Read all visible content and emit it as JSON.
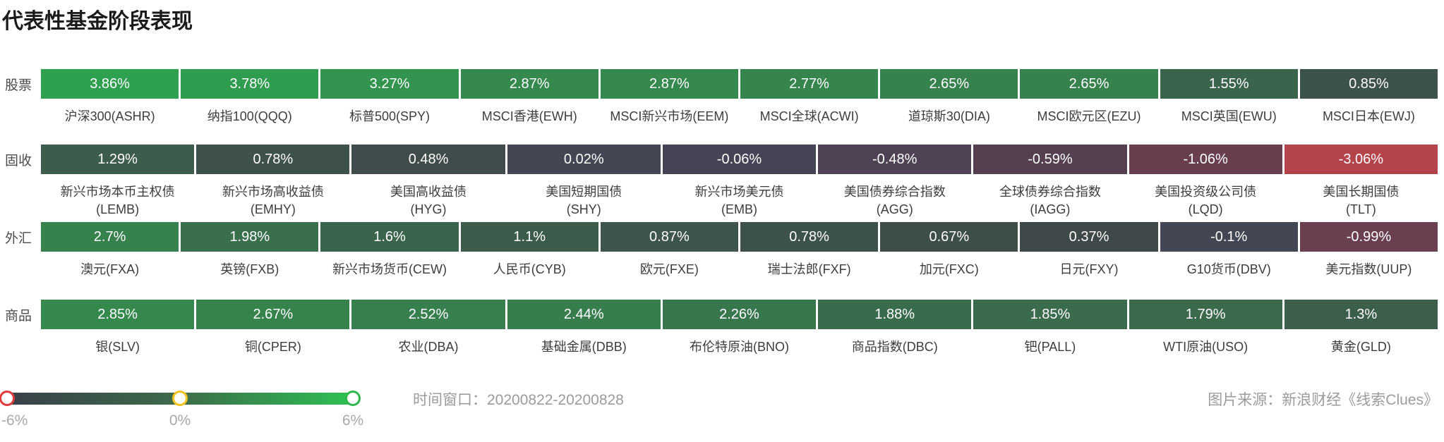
{
  "title": "代表性基金阶段表现",
  "chart_data": {
    "type": "heatmap",
    "title": "代表性基金阶段表现",
    "unit": "%",
    "time_window": "20200822-20200828",
    "color_axis": {
      "min": -6,
      "mid": 0,
      "max": 6,
      "min_label": "-6%",
      "mid_label": "0%",
      "max_label": "6%"
    },
    "rows": [
      {
        "category": "股票",
        "cells": [
          {
            "fund": "沪深300(ASHR)",
            "value": 3.86,
            "display": "3.86%",
            "color": "#2F9F50",
            "label_lines": [
              "沪深300(ASHR)"
            ]
          },
          {
            "fund": "纳指100(QQQ)",
            "value": 3.78,
            "display": "3.78%",
            "color": "#309C50",
            "label_lines": [
              "纳指100(QQQ)"
            ]
          },
          {
            "fund": "标普500(SPY)",
            "value": 3.27,
            "display": "3.27%",
            "color": "#32944F",
            "label_lines": [
              "标普500(SPY)"
            ]
          },
          {
            "fund": "MSCI香港(EWH)",
            "value": 2.87,
            "display": "2.87%",
            "color": "#35884E",
            "label_lines": [
              "MSCI香港(EWH)"
            ]
          },
          {
            "fund": "MSCI新兴市场(EEM)",
            "value": 2.87,
            "display": "2.87%",
            "color": "#35884E",
            "label_lines": [
              "MSCI新兴市场(EEM)"
            ]
          },
          {
            "fund": "MSCI全球(ACWI)",
            "value": 2.77,
            "display": "2.77%",
            "color": "#36854E",
            "label_lines": [
              "MSCI全球(ACWI)"
            ]
          },
          {
            "fund": "道琼斯30(DIA)",
            "value": 2.65,
            "display": "2.65%",
            "color": "#37814E",
            "label_lines": [
              "道琼斯30(DIA)"
            ]
          },
          {
            "fund": "MSCI欧元区(EZU)",
            "value": 2.65,
            "display": "2.65%",
            "color": "#37814E",
            "label_lines": [
              "MSCI欧元区(EZU)"
            ]
          },
          {
            "fund": "MSCI英国(EWU)",
            "value": 1.55,
            "display": "1.55%",
            "color": "#3B644D",
            "label_lines": [
              "MSCI英国(EWU)"
            ]
          },
          {
            "fund": "MSCI日本(EWJ)",
            "value": 0.85,
            "display": "0.85%",
            "color": "#3E524C",
            "label_lines": [
              "MSCI日本(EWJ)"
            ]
          }
        ]
      },
      {
        "category": "固收",
        "cells": [
          {
            "fund": "新兴市场本币主权债(LEMB)",
            "value": 1.29,
            "display": "1.29%",
            "color": "#3D5C4C",
            "label_lines": [
              "新兴市场本币主权债",
              "(LEMB)"
            ]
          },
          {
            "fund": "新兴市场高收益债(EMHY)",
            "value": 0.78,
            "display": "0.78%",
            "color": "#3E514B",
            "label_lines": [
              "新兴市场高收益债",
              "(EMHY)"
            ]
          },
          {
            "fund": "美国高收益债(HYG)",
            "value": 0.48,
            "display": "0.48%",
            "color": "#404B4B",
            "label_lines": [
              "美国高收益债",
              "(HYG)"
            ]
          },
          {
            "fund": "美国短期国债(SHY)",
            "value": 0.02,
            "display": "0.02%",
            "color": "#434653",
            "label_lines": [
              "美国短期国债",
              "(SHY)"
            ]
          },
          {
            "fund": "新兴市场美元债(EMB)",
            "value": -0.06,
            "display": "-0.06%",
            "color": "#444455",
            "label_lines": [
              "新兴市场美元债",
              "(EMB)"
            ]
          },
          {
            "fund": "美国债券综合指数(AGG)",
            "value": -0.48,
            "display": "-0.48%",
            "color": "#4E4254",
            "label_lines": [
              "美国债券综合指数",
              "(AGG)"
            ]
          },
          {
            "fund": "全球债券综合指数(IAGG)",
            "value": -0.59,
            "display": "-0.59%",
            "color": "#554052",
            "label_lines": [
              "全球债券综合指数",
              "(IAGG)"
            ]
          },
          {
            "fund": "美国投资级公司债(LQD)",
            "value": -1.06,
            "display": "-1.06%",
            "color": "#693F50",
            "label_lines": [
              "美国投资级公司债",
              "(LQD)"
            ]
          },
          {
            "fund": "美国长期国债(TLT)",
            "value": -3.06,
            "display": "-3.06%",
            "color": "#B4434C",
            "label_lines": [
              "美国长期国债",
              "(TLT)"
            ]
          }
        ]
      },
      {
        "category": "外汇",
        "cells": [
          {
            "fund": "澳元(FXA)",
            "value": 2.7,
            "display": "2.7%",
            "color": "#37814E",
            "label_lines": [
              "澳元(FXA)"
            ]
          },
          {
            "fund": "英镑(FXB)",
            "value": 1.98,
            "display": "1.98%",
            "color": "#396F4D",
            "label_lines": [
              "英镑(FXB)"
            ]
          },
          {
            "fund": "新兴市场货币(CEW)",
            "value": 1.6,
            "display": "1.6%",
            "color": "#3A654C",
            "label_lines": [
              "新兴市场货币(CEW)"
            ]
          },
          {
            "fund": "人民币(CYB)",
            "value": 1.1,
            "display": "1.1%",
            "color": "#3C5B4B",
            "label_lines": [
              "人民币(CYB)"
            ]
          },
          {
            "fund": "欧元(FXE)",
            "value": 0.87,
            "display": "0.87%",
            "color": "#3D554B",
            "label_lines": [
              "欧元(FXE)"
            ]
          },
          {
            "fund": "瑞士法郎(FXF)",
            "value": 0.78,
            "display": "0.78%",
            "color": "#3D524B",
            "label_lines": [
              "瑞士法郎(FXF)"
            ]
          },
          {
            "fund": "加元(FXC)",
            "value": 0.67,
            "display": "0.67%",
            "color": "#3E4F4A",
            "label_lines": [
              "加元(FXC)"
            ]
          },
          {
            "fund": "日元(FXY)",
            "value": 0.37,
            "display": "0.37%",
            "color": "#3F4949",
            "label_lines": [
              "日元(FXY)"
            ]
          },
          {
            "fund": "G10货币(DBV)",
            "value": -0.1,
            "display": "-0.1%",
            "color": "#434754",
            "label_lines": [
              "G10货币(DBV)"
            ]
          },
          {
            "fund": "美元指数(UUP)",
            "value": -0.99,
            "display": "-0.99%",
            "color": "#6A4051",
            "label_lines": [
              "美元指数(UUP)"
            ]
          }
        ]
      },
      {
        "category": "商品",
        "cells": [
          {
            "fund": "银(SLV)",
            "value": 2.85,
            "display": "2.85%",
            "color": "#35884E",
            "label_lines": [
              "银(SLV)"
            ]
          },
          {
            "fund": "铜(CPER)",
            "value": 2.67,
            "display": "2.67%",
            "color": "#36834E",
            "label_lines": [
              "铜(CPER)"
            ]
          },
          {
            "fund": "农业(DBA)",
            "value": 2.52,
            "display": "2.52%",
            "color": "#377F4E",
            "label_lines": [
              "农业(DBA)"
            ]
          },
          {
            "fund": "基础金属(DBB)",
            "value": 2.44,
            "display": "2.44%",
            "color": "#377D4D",
            "label_lines": [
              "基础金属(DBB)"
            ]
          },
          {
            "fund": "布伦特原油(BNO)",
            "value": 2.26,
            "display": "2.26%",
            "color": "#38774D",
            "label_lines": [
              "布伦特原油(BNO)"
            ]
          },
          {
            "fund": "商品指数(DBC)",
            "value": 1.88,
            "display": "1.88%",
            "color": "#396C4C",
            "label_lines": [
              "商品指数(DBC)"
            ]
          },
          {
            "fund": "钯(PALL)",
            "value": 1.85,
            "display": "1.85%",
            "color": "#3A6B4C",
            "label_lines": [
              "钯(PALL)"
            ]
          },
          {
            "fund": "WTI原油(USO)",
            "value": 1.79,
            "display": "1.79%",
            "color": "#3A694C",
            "label_lines": [
              "WTI原油(USO)"
            ]
          },
          {
            "fund": "黄金(GLD)",
            "value": 1.3,
            "display": "1.3%",
            "color": "#3C5E4B",
            "label_lines": [
              "黄金(GLD)"
            ]
          }
        ]
      }
    ]
  },
  "legend": {
    "gradient": [
      "#394049",
      "#3D6B4B",
      "#2EC153"
    ],
    "handle_colors": {
      "min": "#E23A3A",
      "mid": "#F2C41D",
      "max": "#2EB84E"
    }
  },
  "footer": {
    "time_window": "时间窗口：20200822-20200828",
    "source": "图片来源：新浪财经《线索Clues》"
  }
}
